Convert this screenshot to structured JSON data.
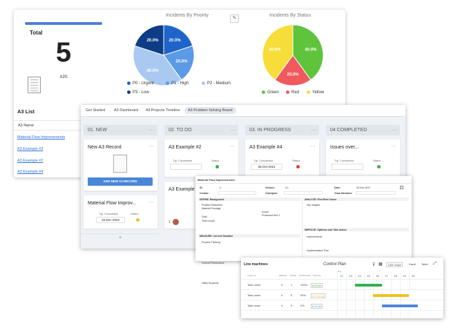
{
  "dashboard": {
    "total": {
      "label": "Total",
      "value": "5",
      "sub": "A3S"
    },
    "priority_chart": {
      "title": "Incidents By Priority",
      "legend": [
        "P0 - Urgent",
        "P1 - High",
        "P2 - Medium",
        "P3 - Low"
      ]
    },
    "status_chart": {
      "title": "Incidents By Status",
      "legend": [
        "Green",
        "Red",
        "Yellow"
      ]
    },
    "a3list": {
      "title": "A3 List",
      "column": "A3 Name",
      "items": [
        "Material Flow Improvements",
        "A3 Example #3",
        "A3 Example #2",
        "A3 Example #4"
      ]
    }
  },
  "chart_data": [
    {
      "type": "pie",
      "title": "Incidents By Priority",
      "categories": [
        "P0 - Urgent",
        "P1 - High",
        "P2 - Medium",
        "P3 - Low"
      ],
      "values": [
        20.0,
        20.0,
        40.0,
        20.0
      ],
      "labels": [
        "20.0%",
        "20.0%",
        "40.0%",
        "20.0%"
      ],
      "colors": [
        "#1f65c9",
        "#5b9ae6",
        "#a9c9f1",
        "#0e3d86"
      ],
      "legend": "bottom"
    },
    {
      "type": "pie",
      "title": "Incidents By Status",
      "categories": [
        "Green",
        "Red",
        "Yellow"
      ],
      "values": [
        40.0,
        20.0,
        40.0
      ],
      "labels": [
        "40.0%",
        "20.0%",
        "40.0%"
      ],
      "colors": [
        "#5fc43c",
        "#f05a5f",
        "#f7dd3a"
      ],
      "legend": "bottom"
    }
  ],
  "board": {
    "tabs": [
      "Get Started",
      "A3 Dashboard",
      "All Projects Timeline",
      "A3 Problem Solving Board"
    ],
    "columns": [
      "01. NEW",
      "02. TO DO",
      "03. IN PROGRESS",
      "04 COMPLETED"
    ],
    "new_card": {
      "title": "New A3 Record",
      "button": "ADD NEW A3 RECORD"
    },
    "cards": {
      "mfi": {
        "title": "Material Flow Improv...",
        "date": "15-Dec-2022"
      },
      "ex2": {
        "title": "A3 Example #2"
      },
      "ex3": {
        "title": "A3 Example"
      },
      "ex4": {
        "title": "A3 Example #4",
        "date": "05-Oct-2021"
      },
      "iss": {
        "title": "Issues over..."
      }
    },
    "meta": {
      "completion": "Tgt. Completion",
      "status": "Status"
    },
    "comment_count": "1",
    "add": "+"
  },
  "doc": {
    "title": "Material Flow Improvements",
    "id_label": "ID:",
    "id_value": "2",
    "version_label": "Version:",
    "version_value": "4.1",
    "date_label": "Date:",
    "date_value": "30-Nov-2021",
    "creator_label": "Creator:",
    "champion_label": "Champion:",
    "team_label": "Team Members:",
    "define": "DEFINE: Background",
    "define_items": [
      "Problem Statement",
      "Material Shortage",
      "Goal",
      "Scope",
      "Production line 2",
      "Team scope"
    ],
    "analyze": "ANALYZE: Find Root Cause",
    "analyze_item": "Key Insights",
    "measure": "MEASURE: Current Situation",
    "measure_items": [
      "Process Thinking",
      "Current Performance",
      "Likely Suspects"
    ],
    "improve": "IMPROVE: Optimize and Take Action",
    "improve_items": [
      "Improvements",
      "Implementation Plan"
    ]
  },
  "control_plan": {
    "title": "Line machines",
    "subtitle": "Control Plan",
    "view_select": "Unit: Days",
    "gantt_btn": "Gantt",
    "table_btn": "Table",
    "headers": [
      "TASK 1/1",
      "PERIOD",
      "DONE",
      "COMPLETE",
      "STATUS"
    ],
    "month": "Dec",
    "days": [
      "12",
      "13",
      "14",
      "15",
      "16",
      "17",
      "18",
      "19",
      "20"
    ],
    "rows": [
      {
        "name": "Task name",
        "period": "3",
        "done": "1",
        "complete": "100%",
        "status": "Done"
      },
      {
        "name": "Task name",
        "period": "4",
        "done": "0",
        "complete": "50%",
        "status": "In prog."
      },
      {
        "name": "Task name",
        "period": "4",
        "done": "0",
        "complete": "0%",
        "status": "To do"
      }
    ]
  },
  "colors": {
    "accent": "#4a86d8",
    "green": "#2fb24a",
    "red": "#e03a3a",
    "yellow": "#f2c21a"
  }
}
